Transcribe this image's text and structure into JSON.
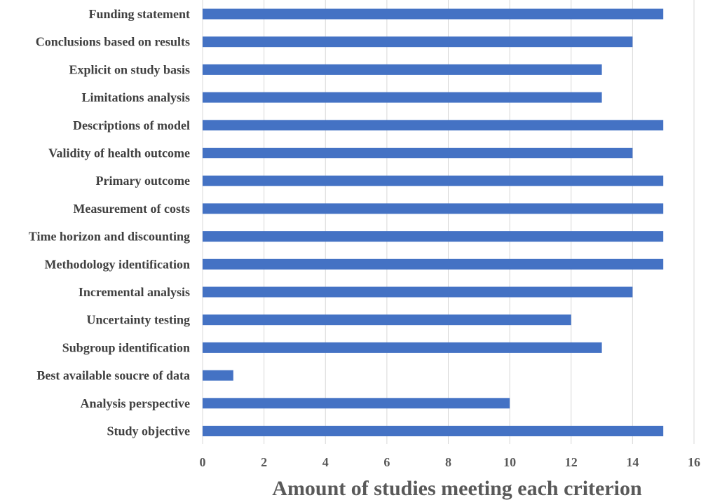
{
  "chart_data": {
    "type": "bar",
    "orientation": "horizontal",
    "categories": [
      "Funding statement",
      "Conclusions based on results",
      "Explicit on study basis",
      "Limitations analysis",
      "Descriptions of model",
      "Validity of health outcome",
      "Primary outcome",
      "Measurement of costs",
      "Time horizon and discounting",
      "Methodology identification",
      "Incremental analysis",
      "Uncertainty testing",
      "Subgroup identification",
      "Best available soucre of data",
      "Analysis perspective",
      "Study objective"
    ],
    "values": [
      15,
      14,
      13,
      13,
      15,
      14,
      15,
      15,
      15,
      15,
      14,
      12,
      13,
      1,
      10,
      15
    ],
    "xlabel": "Amount of studies meeting each criterion",
    "ylabel": "",
    "xlim": [
      0,
      16
    ],
    "xticks": [
      "0",
      "2",
      "4",
      "6",
      "8",
      "10",
      "12",
      "14",
      "16"
    ],
    "grid": "vertical",
    "bar_color": "#4472c4"
  }
}
